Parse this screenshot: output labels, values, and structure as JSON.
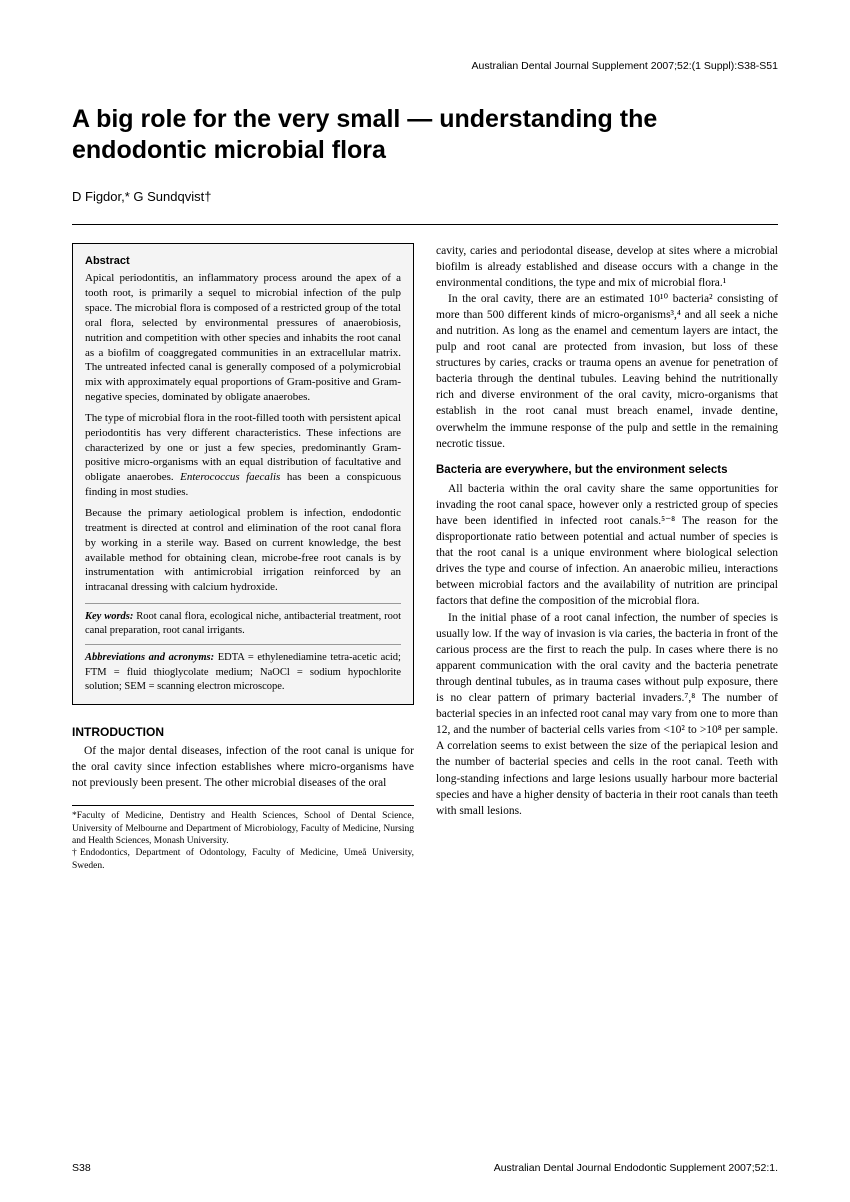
{
  "header_citation": "Australian Dental Journal Supplement 2007;52:(1 Suppl):S38-S51",
  "title": "A big role for the very small — understanding the endodontic microbial flora",
  "authors": "D Figdor,* G Sundqvist†",
  "abstract": {
    "label": "Abstract",
    "p1": "Apical periodontitis, an inflammatory process around the apex of a tooth root, is primarily a sequel to microbial infection of the pulp space. The microbial flora is composed of a restricted group of the total oral flora, selected by environmental pressures of anaerobiosis, nutrition and competition with other species and inhabits the root canal as a biofilm of coaggregated communities in an extracellular matrix. The untreated infected canal is generally composed of a polymicrobial mix with approximately equal proportions of Gram-positive and Gram-negative species, dominated by obligate anaerobes.",
    "p2_a": "The type of microbial flora in the root-filled tooth with persistent apical periodontitis has very different characteristics. These infections are characterized by one or just a few species, predominantly Gram-positive micro-organisms with an equal distribution of facultative and obligate anaerobes. ",
    "p2_species": "Enterococcus faecalis",
    "p2_b": " has been a conspicuous finding in most studies.",
    "p3": "Because the primary aetiological problem is infection, endodontic treatment is directed at control and elimination of the root canal flora by working in a sterile way. Based on current knowledge, the best available method for obtaining clean, microbe-free root canals is by instrumentation with antimicrobial irrigation reinforced by an intracanal dressing with calcium hydroxide.",
    "keywords_label": "Key words:",
    "keywords": " Root canal flora, ecological niche, antibacterial treatment, root canal preparation, root canal irrigants.",
    "abbrev_label": "Abbreviations and acronyms:",
    "abbrev": " EDTA = ethylenediamine tetra-acetic acid; FTM = fluid thioglycolate medium; NaOCl = sodium hypochlorite solution; SEM = scanning electron microscope."
  },
  "intro_heading": "INTRODUCTION",
  "intro_p1": "Of the major dental diseases, infection of the root canal is unique for the oral cavity since infection establishes where micro-organisms have not previously been present. The other microbial diseases of the oral",
  "affil1": "*Faculty of Medicine, Dentistry and Health Sciences, School of Dental Science, University of Melbourne and Department of Microbiology, Faculty of Medicine, Nursing and Health Sciences, Monash University.",
  "affil2": "†Endodontics, Department of Odontology, Faculty of Medicine, Umeå University, Sweden.",
  "col2": {
    "p1": "cavity, caries and periodontal disease, develop at sites where a microbial biofilm is already established and disease occurs with a change in the environmental conditions, the type and mix of microbial flora.¹",
    "p2": "In the oral cavity, there are an estimated 10¹⁰ bacteria² consisting of more than 500 different kinds of micro-organisms³,⁴ and all seek a niche and nutrition. As long as the enamel and cementum layers are intact, the pulp and root canal are protected from invasion, but loss of these structures by caries, cracks or trauma opens an avenue for penetration of bacteria through the dentinal tubules. Leaving behind the nutritionally rich and diverse environment of the oral cavity, micro-organisms that establish in the root canal must breach enamel, invade dentine, overwhelm the immune response of the pulp and settle in the remaining necrotic tissue.",
    "subheading": "Bacteria are everywhere, but the environment selects",
    "p3": "All bacteria within the oral cavity share the same opportunities for invading the root canal space, however only a restricted group of species have been identified in infected root canals.⁵⁻⁸ The reason for the disproportionate ratio between potential and actual number of species is that the root canal is a unique environment where biological selection drives the type and course of infection. An anaerobic milieu, interactions between microbial factors and the availability of nutrition are principal factors that define the composition of the microbial flora.",
    "p4": "In the initial phase of a root canal infection, the number of species is usually low. If the way of invasion is via caries, the bacteria in front of the carious process are the first to reach the pulp. In cases where there is no apparent communication with the oral cavity and the bacteria penetrate through dentinal tubules, as in trauma cases without pulp exposure, there is no clear pattern of primary bacterial invaders.⁷,⁸ The number of bacterial species in an infected root canal may vary from one to more than 12, and the number of bacterial cells varies from <10² to >10⁸ per sample. A correlation seems to exist between the size of the periapical lesion and the number of bacterial species and cells in the root canal. Teeth with long-standing infections and large lesions usually harbour more bacterial species and have a higher density of bacteria in their root canals than teeth with small lesions."
  },
  "footer_left": "S38",
  "footer_right": "Australian Dental Journal Endodontic Supplement 2007;52:1."
}
